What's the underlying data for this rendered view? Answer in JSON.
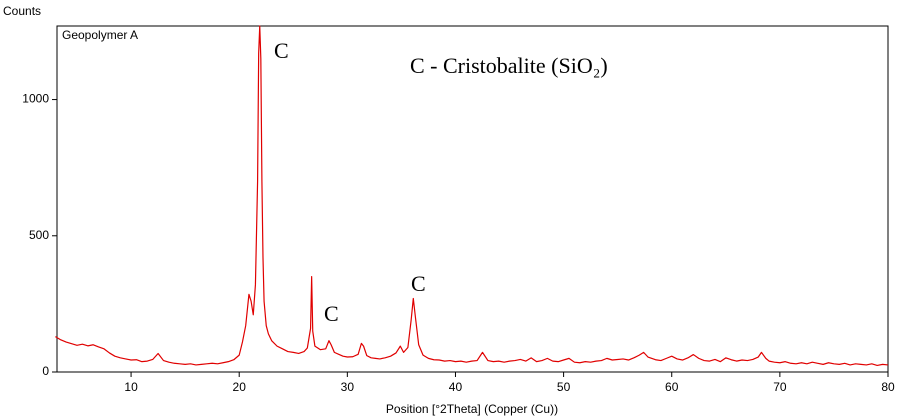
{
  "chart_data": {
    "type": "line",
    "y_axis_label": "Counts",
    "x_axis_label": "Position [°2Theta] (Copper (Cu))",
    "legend_text": "Geopolymer A",
    "annotations": [
      "C - Cristobalite (SiO₂)",
      "C",
      "C",
      "C"
    ],
    "xlim": [
      3.15,
      80
    ],
    "ylim": [
      0,
      1270
    ],
    "xticks": [
      10,
      20,
      30,
      40,
      50,
      60,
      70,
      80
    ],
    "yticks": [
      0,
      500,
      1000
    ],
    "grid": false,
    "series": [
      {
        "name": "Geopolymer A",
        "color": "#e00000",
        "x": [
          3,
          3.5,
          4,
          4.5,
          5,
          5.5,
          6,
          6.5,
          7,
          7.5,
          8,
          8.5,
          9,
          9.5,
          10,
          10.5,
          11,
          11.5,
          12,
          12.5,
          13,
          13.5,
          14,
          14.5,
          15,
          15.5,
          16,
          16.5,
          17,
          17.5,
          18,
          18.5,
          19,
          19.5,
          20,
          20.3,
          20.6,
          20.9,
          21.1,
          21.3,
          21.5,
          21.7,
          21.8,
          21.9,
          22.0,
          22.1,
          22.2,
          22.3,
          22.5,
          22.7,
          23,
          23.5,
          24,
          24.5,
          25,
          25.5,
          26,
          26.3,
          26.6,
          26.7,
          26.8,
          27,
          27.5,
          28,
          28.3,
          28.5,
          28.8,
          29.2,
          29.6,
          30,
          30.5,
          31,
          31.3,
          31.5,
          31.8,
          32.2,
          32.6,
          33,
          33.5,
          34,
          34.5,
          34.9,
          35.2,
          35.6,
          35.9,
          36.1,
          36.3,
          36.6,
          37,
          37.5,
          38,
          38.5,
          39,
          39.5,
          40,
          40.5,
          41,
          41.5,
          42,
          42.5,
          43,
          43.5,
          44,
          44.5,
          45,
          45.5,
          46,
          46.5,
          47,
          47.5,
          48,
          48.5,
          49,
          49.5,
          50,
          50.5,
          51,
          51.5,
          52,
          52.5,
          53,
          53.5,
          54,
          54.5,
          55,
          55.5,
          56,
          56.5,
          57,
          57.4,
          57.8,
          58.5,
          59,
          59.5,
          60,
          60.5,
          61,
          61.5,
          62,
          62.5,
          63,
          63.5,
          64,
          64.5,
          65,
          65.5,
          66,
          66.5,
          67,
          67.5,
          68,
          68.3,
          68.7,
          69,
          69.5,
          70,
          70.5,
          71,
          71.5,
          72,
          72.5,
          73,
          73.5,
          74,
          74.5,
          75,
          75.5,
          76,
          76.5,
          77,
          77.5,
          78,
          78.5,
          79,
          79.5,
          80
        ],
        "values": [
          130,
          118,
          110,
          104,
          98,
          102,
          96,
          100,
          92,
          85,
          70,
          58,
          52,
          48,
          44,
          45,
          38,
          40,
          46,
          68,
          42,
          36,
          32,
          30,
          28,
          30,
          26,
          28,
          30,
          32,
          30,
          34,
          38,
          45,
          62,
          110,
          170,
          285,
          260,
          210,
          320,
          700,
          1170,
          1270,
          1150,
          700,
          420,
          260,
          170,
          140,
          115,
          95,
          85,
          75,
          72,
          68,
          75,
          88,
          160,
          350,
          150,
          95,
          82,
          85,
          115,
          100,
          72,
          65,
          58,
          55,
          56,
          65,
          105,
          95,
          60,
          52,
          50,
          48,
          52,
          58,
          70,
          95,
          72,
          90,
          190,
          270,
          200,
          100,
          62,
          50,
          45,
          44,
          40,
          42,
          38,
          40,
          36,
          40,
          42,
          72,
          42,
          38,
          40,
          36,
          40,
          42,
          46,
          40,
          52,
          38,
          42,
          50,
          40,
          38,
          44,
          50,
          36,
          34,
          38,
          36,
          40,
          42,
          50,
          44,
          46,
          48,
          44,
          52,
          62,
          72,
          55,
          45,
          42,
          50,
          58,
          48,
          44,
          52,
          64,
          50,
          42,
          40,
          46,
          38,
          52,
          45,
          40,
          44,
          42,
          46,
          55,
          72,
          50,
          40,
          36,
          34,
          38,
          32,
          30,
          34,
          30,
          36,
          32,
          28,
          34,
          30,
          28,
          32,
          26,
          30,
          28,
          26,
          30,
          24,
          28,
          26
        ]
      }
    ]
  }
}
